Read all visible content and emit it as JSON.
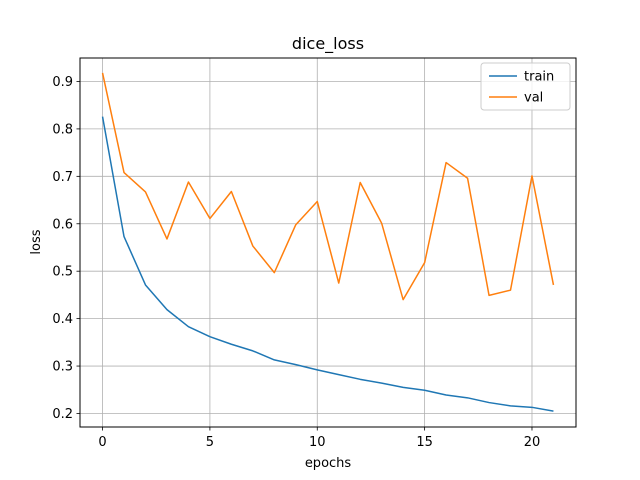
{
  "chart_data": {
    "type": "line",
    "title": "dice_loss",
    "xlabel": "epochs",
    "ylabel": "loss",
    "xlim": [
      -1.05,
      22.05
    ],
    "ylim": [
      0.1715,
      0.9495
    ],
    "xticks": [
      0,
      5,
      10,
      15,
      20
    ],
    "yticks": [
      0.2,
      0.3,
      0.4,
      0.5,
      0.6,
      0.7,
      0.8,
      0.9
    ],
    "grid": true,
    "legend_position": "top-right",
    "x": [
      0,
      1,
      2,
      3,
      4,
      5,
      6,
      7,
      8,
      9,
      10,
      11,
      12,
      13,
      14,
      15,
      16,
      17,
      18,
      19,
      20,
      21
    ],
    "series": [
      {
        "name": "train",
        "color": "#1f77b4",
        "values": [
          0.826,
          0.573,
          0.471,
          0.419,
          0.383,
          0.362,
          0.346,
          0.332,
          0.313,
          0.303,
          0.292,
          0.282,
          0.272,
          0.264,
          0.255,
          0.249,
          0.239,
          0.233,
          0.223,
          0.216,
          0.213,
          0.205
        ]
      },
      {
        "name": "val",
        "color": "#ff7f0e",
        "values": [
          0.918,
          0.708,
          0.667,
          0.568,
          0.688,
          0.611,
          0.668,
          0.553,
          0.497,
          0.598,
          0.647,
          0.475,
          0.687,
          0.601,
          0.44,
          0.518,
          0.729,
          0.696,
          0.449,
          0.46,
          0.701,
          0.471
        ]
      }
    ]
  }
}
